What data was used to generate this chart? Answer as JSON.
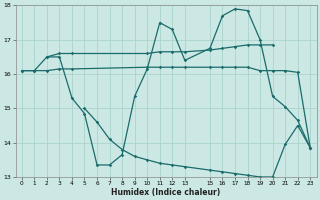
{
  "xlabel": "Humidex (Indice chaleur)",
  "bg_color": "#cce8e4",
  "grid_color": "#aad4cc",
  "line_color": "#1a6b6b",
  "xlim": [
    -0.5,
    23.5
  ],
  "ylim": [
    13,
    18
  ],
  "yticks": [
    13,
    14,
    15,
    16,
    17,
    18
  ],
  "xticks": [
    0,
    1,
    2,
    3,
    4,
    5,
    6,
    7,
    8,
    9,
    10,
    11,
    12,
    13,
    15,
    16,
    17,
    18,
    19,
    20,
    21,
    22,
    23
  ],
  "curve1_x": [
    0,
    1,
    2,
    3,
    4,
    10,
    11,
    12,
    13,
    15,
    16,
    17,
    18,
    19,
    20
  ],
  "curve1_y": [
    16.1,
    16.1,
    16.5,
    16.6,
    16.6,
    16.6,
    16.65,
    16.65,
    16.65,
    16.7,
    16.75,
    16.8,
    16.85,
    16.85,
    16.85
  ],
  "curve2_x": [
    0,
    1,
    2,
    3,
    4,
    10,
    11,
    12,
    13,
    15,
    16,
    17,
    18,
    19,
    20,
    21,
    22,
    23
  ],
  "curve2_y": [
    16.1,
    16.1,
    16.1,
    16.15,
    16.15,
    16.2,
    16.2,
    16.2,
    16.2,
    16.2,
    16.2,
    16.2,
    16.2,
    16.1,
    16.1,
    16.1,
    16.05,
    13.85
  ],
  "curve3_x": [
    2,
    3,
    4,
    5,
    6,
    7,
    8,
    9,
    10,
    11,
    12,
    13,
    15,
    16,
    17,
    18,
    19,
    20,
    21,
    22,
    23
  ],
  "curve3_y": [
    16.5,
    16.5,
    15.3,
    14.85,
    13.35,
    13.35,
    13.65,
    15.35,
    16.15,
    17.5,
    17.3,
    16.4,
    16.75,
    17.7,
    17.9,
    17.85,
    17.0,
    15.35,
    15.05,
    14.65,
    13.85
  ],
  "curve4_x": [
    5,
    6,
    7,
    8,
    9,
    10,
    11,
    12,
    13,
    15,
    16,
    17,
    18,
    19,
    20,
    21,
    22,
    23
  ],
  "curve4_y": [
    15.0,
    14.6,
    14.1,
    13.8,
    13.6,
    13.5,
    13.4,
    13.35,
    13.3,
    13.2,
    13.15,
    13.1,
    13.05,
    13.0,
    13.0,
    13.95,
    14.5,
    13.85
  ]
}
